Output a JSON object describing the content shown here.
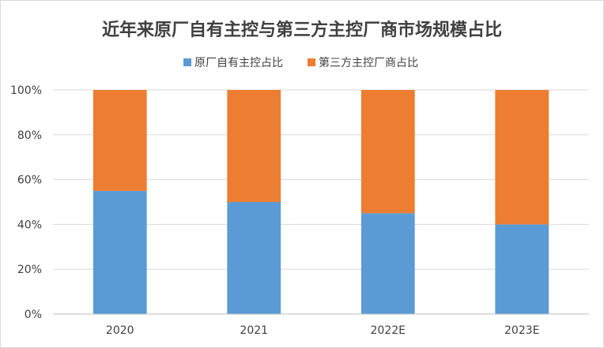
{
  "chart_data": {
    "type": "bar",
    "stacked": true,
    "percent": true,
    "title": "近年来原厂自有主控与第三方主控厂商市场规模占比",
    "categories": [
      "2020",
      "2021",
      "2022E",
      "2023E"
    ],
    "series": [
      {
        "name": "原厂自有主控占比",
        "values": [
          55,
          50,
          45,
          40
        ],
        "color": "#5b9bd5"
      },
      {
        "name": "第三方主控厂商占比",
        "values": [
          45,
          50,
          55,
          60
        ],
        "color": "#ed7d31"
      }
    ],
    "y_ticks": [
      "0%",
      "20%",
      "40%",
      "60%",
      "80%",
      "100%"
    ],
    "ylim": [
      0,
      100
    ],
    "grid": true,
    "legend": "top-center"
  }
}
